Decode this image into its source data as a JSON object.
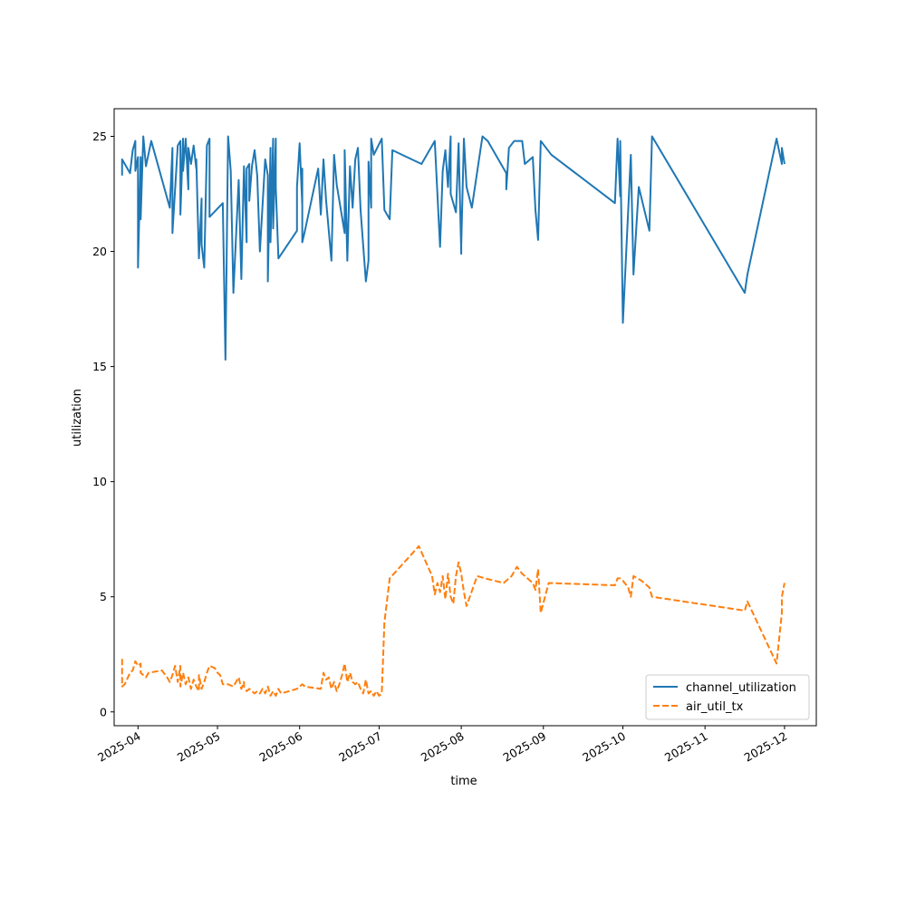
{
  "chart_data": {
    "type": "line",
    "title": "",
    "xlabel": "time",
    "ylabel": "utilization",
    "ylim": [
      -0.6,
      26.2
    ],
    "xlim": [
      "2025-03-23",
      "2025-12-13"
    ],
    "grid": false,
    "legend_position": "lower-right",
    "x_ticks": [
      "2025-04",
      "2025-05",
      "2025-06",
      "2025-07",
      "2025-08",
      "2025-09",
      "2025-10",
      "2025-11",
      "2025-12"
    ],
    "x_tick_dates": [
      "2025-04-01",
      "2025-05-01",
      "2025-06-01",
      "2025-07-01",
      "2025-08-01",
      "2025-09-01",
      "2025-10-01",
      "2025-11-01",
      "2025-12-01"
    ],
    "y_ticks": [
      0,
      5,
      10,
      15,
      20,
      25
    ],
    "series": [
      {
        "name": "channel_utilization",
        "color": "#1f77b4",
        "dash": "solid",
        "points": [
          [
            "2025-03-26",
            23.3
          ],
          [
            "2025-03-26",
            24.0
          ],
          [
            "2025-03-29",
            23.4
          ],
          [
            "2025-03-30",
            24.4
          ],
          [
            "2025-03-31",
            24.8
          ],
          [
            "2025-03-31",
            23.5
          ],
          [
            "2025-04-01",
            24.1
          ],
          [
            "2025-04-01",
            19.3
          ],
          [
            "2025-04-02",
            24.1
          ],
          [
            "2025-04-02",
            21.4
          ],
          [
            "2025-04-03",
            25.0
          ],
          [
            "2025-04-04",
            23.7
          ],
          [
            "2025-04-06",
            24.8
          ],
          [
            "2025-04-13",
            21.9
          ],
          [
            "2025-04-14",
            24.5
          ],
          [
            "2025-04-14",
            20.8
          ],
          [
            "2025-04-16",
            24.6
          ],
          [
            "2025-04-17",
            24.8
          ],
          [
            "2025-04-17",
            21.6
          ],
          [
            "2025-04-18",
            24.9
          ],
          [
            "2025-04-18",
            23.5
          ],
          [
            "2025-04-19",
            24.9
          ],
          [
            "2025-04-20",
            22.7
          ],
          [
            "2025-04-20",
            24.5
          ],
          [
            "2025-04-21",
            23.8
          ],
          [
            "2025-04-22",
            24.6
          ],
          [
            "2025-04-23",
            23.6
          ],
          [
            "2025-04-23",
            24.0
          ],
          [
            "2025-04-24",
            19.7
          ],
          [
            "2025-04-25",
            22.3
          ],
          [
            "2025-04-25",
            20.3
          ],
          [
            "2025-04-26",
            19.3
          ],
          [
            "2025-04-27",
            24.6
          ],
          [
            "2025-04-28",
            24.9
          ],
          [
            "2025-04-28",
            21.5
          ],
          [
            "2025-05-03",
            22.1
          ],
          [
            "2025-05-04",
            15.3
          ],
          [
            "2025-05-05",
            25.0
          ],
          [
            "2025-05-06",
            23.5
          ],
          [
            "2025-05-07",
            18.2
          ],
          [
            "2025-05-09",
            23.1
          ],
          [
            "2025-05-10",
            18.8
          ],
          [
            "2025-05-11",
            23.7
          ],
          [
            "2025-05-12",
            20.4
          ],
          [
            "2025-05-12",
            23.6
          ],
          [
            "2025-05-13",
            23.8
          ],
          [
            "2025-05-13",
            22.2
          ],
          [
            "2025-05-14",
            23.7
          ],
          [
            "2025-05-15",
            24.4
          ],
          [
            "2025-05-16",
            23.3
          ],
          [
            "2025-05-17",
            20.0
          ],
          [
            "2025-05-19",
            24.0
          ],
          [
            "2025-05-20",
            23.3
          ],
          [
            "2025-05-20",
            18.7
          ],
          [
            "2025-05-21",
            24.5
          ],
          [
            "2025-05-21",
            20.4
          ],
          [
            "2025-05-22",
            24.9
          ],
          [
            "2025-05-22",
            21.0
          ],
          [
            "2025-05-23",
            24.9
          ],
          [
            "2025-05-23",
            22.8
          ],
          [
            "2025-05-24",
            19.7
          ],
          [
            "2025-05-31",
            20.9
          ],
          [
            "2025-05-31",
            22.8
          ],
          [
            "2025-06-01",
            24.7
          ],
          [
            "2025-06-02",
            22.0
          ],
          [
            "2025-06-02",
            23.6
          ],
          [
            "2025-06-02",
            20.4
          ],
          [
            "2025-06-03",
            20.9
          ],
          [
            "2025-06-08",
            23.6
          ],
          [
            "2025-06-09",
            21.6
          ],
          [
            "2025-06-10",
            24.0
          ],
          [
            "2025-06-11",
            22.2
          ],
          [
            "2025-06-13",
            19.6
          ],
          [
            "2025-06-14",
            24.2
          ],
          [
            "2025-06-15",
            22.9
          ],
          [
            "2025-06-18",
            20.8
          ],
          [
            "2025-06-18",
            24.4
          ],
          [
            "2025-06-19",
            19.6
          ],
          [
            "2025-06-20",
            23.7
          ],
          [
            "2025-06-21",
            21.9
          ],
          [
            "2025-06-22",
            24.0
          ],
          [
            "2025-06-23",
            24.5
          ],
          [
            "2025-06-24",
            21.8
          ],
          [
            "2025-06-26",
            18.7
          ],
          [
            "2025-06-27",
            19.6
          ],
          [
            "2025-06-27",
            23.9
          ],
          [
            "2025-06-28",
            21.9
          ],
          [
            "2025-06-28",
            24.9
          ],
          [
            "2025-06-29",
            24.2
          ],
          [
            "2025-07-02",
            24.9
          ],
          [
            "2025-07-03",
            21.8
          ],
          [
            "2025-07-05",
            21.4
          ],
          [
            "2025-07-06",
            24.4
          ],
          [
            "2025-07-17",
            23.8
          ],
          [
            "2025-07-22",
            24.8
          ],
          [
            "2025-07-24",
            20.2
          ],
          [
            "2025-07-25",
            23.5
          ],
          [
            "2025-07-26",
            24.4
          ],
          [
            "2025-07-27",
            22.8
          ],
          [
            "2025-07-28",
            25.0
          ],
          [
            "2025-07-28",
            22.5
          ],
          [
            "2025-07-30",
            21.7
          ],
          [
            "2025-07-31",
            24.7
          ],
          [
            "2025-08-01",
            19.9
          ],
          [
            "2025-08-01",
            20.3
          ],
          [
            "2025-08-02",
            24.9
          ],
          [
            "2025-08-03",
            22.8
          ],
          [
            "2025-08-05",
            21.9
          ],
          [
            "2025-08-09",
            25.0
          ],
          [
            "2025-08-11",
            24.8
          ],
          [
            "2025-08-18",
            23.4
          ],
          [
            "2025-08-18",
            22.7
          ],
          [
            "2025-08-19",
            24.5
          ],
          [
            "2025-08-21",
            24.8
          ],
          [
            "2025-08-24",
            24.8
          ],
          [
            "2025-08-25",
            23.8
          ],
          [
            "2025-08-28",
            24.1
          ],
          [
            "2025-08-29",
            21.8
          ],
          [
            "2025-08-30",
            20.5
          ],
          [
            "2025-08-31",
            24.8
          ],
          [
            "2025-09-04",
            24.2
          ],
          [
            "2025-09-28",
            22.1
          ],
          [
            "2025-09-29",
            24.9
          ],
          [
            "2025-09-30",
            22.4
          ],
          [
            "2025-09-30",
            24.8
          ],
          [
            "2025-10-01",
            16.9
          ],
          [
            "2025-10-04",
            24.2
          ],
          [
            "2025-10-05",
            19.0
          ],
          [
            "2025-10-07",
            22.8
          ],
          [
            "2025-10-11",
            20.9
          ],
          [
            "2025-10-12",
            25.0
          ],
          [
            "2025-11-16",
            18.2
          ],
          [
            "2025-11-17",
            19.0
          ],
          [
            "2025-11-28",
            24.9
          ],
          [
            "2025-11-30",
            23.8
          ],
          [
            "2025-11-30",
            24.5
          ],
          [
            "2025-12-01",
            23.8
          ]
        ]
      },
      {
        "name": "air_util_tx",
        "color": "#ff7f0e",
        "dash": "dashed",
        "points": [
          [
            "2025-03-26",
            2.3
          ],
          [
            "2025-03-26",
            1.1
          ],
          [
            "2025-03-27",
            1.2
          ],
          [
            "2025-03-29",
            1.7
          ],
          [
            "2025-03-30",
            1.8
          ],
          [
            "2025-03-31",
            2.2
          ],
          [
            "2025-04-01",
            2.0
          ],
          [
            "2025-04-02",
            2.1
          ],
          [
            "2025-04-02",
            1.7
          ],
          [
            "2025-04-03",
            1.6
          ],
          [
            "2025-04-04",
            1.5
          ],
          [
            "2025-04-05",
            1.7
          ],
          [
            "2025-04-10",
            1.8
          ],
          [
            "2025-04-12",
            1.5
          ],
          [
            "2025-04-13",
            1.3
          ],
          [
            "2025-04-14",
            1.6
          ],
          [
            "2025-04-15",
            2.0
          ],
          [
            "2025-04-16",
            1.3
          ],
          [
            "2025-04-17",
            2.0
          ],
          [
            "2025-04-17",
            1.1
          ],
          [
            "2025-04-18",
            1.7
          ],
          [
            "2025-04-19",
            1.2
          ],
          [
            "2025-04-20",
            1.5
          ],
          [
            "2025-04-21",
            1.0
          ],
          [
            "2025-04-22",
            1.4
          ],
          [
            "2025-04-23",
            1.1
          ],
          [
            "2025-04-24",
            0.9
          ],
          [
            "2025-04-24",
            1.6
          ],
          [
            "2025-04-25",
            1.0
          ],
          [
            "2025-04-26",
            1.3
          ],
          [
            "2025-04-27",
            1.7
          ],
          [
            "2025-04-28",
            2.0
          ],
          [
            "2025-04-30",
            1.9
          ],
          [
            "2025-05-01",
            1.7
          ],
          [
            "2025-05-02",
            1.6
          ],
          [
            "2025-05-03",
            1.2
          ],
          [
            "2025-05-05",
            1.2
          ],
          [
            "2025-05-07",
            1.1
          ],
          [
            "2025-05-09",
            1.5
          ],
          [
            "2025-05-10",
            1.0
          ],
          [
            "2025-05-11",
            1.3
          ],
          [
            "2025-05-11",
            1.1
          ],
          [
            "2025-05-12",
            0.9
          ],
          [
            "2025-05-13",
            1.0
          ],
          [
            "2025-05-14",
            0.9
          ],
          [
            "2025-05-15",
            0.8
          ],
          [
            "2025-05-16",
            0.9
          ],
          [
            "2025-05-17",
            0.8
          ],
          [
            "2025-05-18",
            1.0
          ],
          [
            "2025-05-19",
            0.8
          ],
          [
            "2025-05-20",
            1.1
          ],
          [
            "2025-05-21",
            0.7
          ],
          [
            "2025-05-22",
            0.9
          ],
          [
            "2025-05-23",
            0.7
          ],
          [
            "2025-05-24",
            1.0
          ],
          [
            "2025-05-25",
            0.8
          ],
          [
            "2025-05-31",
            1.0
          ],
          [
            "2025-06-01",
            1.1
          ],
          [
            "2025-06-02",
            1.2
          ],
          [
            "2025-06-03",
            1.1
          ],
          [
            "2025-06-09",
            1.0
          ],
          [
            "2025-06-10",
            1.7
          ],
          [
            "2025-06-11",
            1.4
          ],
          [
            "2025-06-12",
            1.5
          ],
          [
            "2025-06-13",
            1.0
          ],
          [
            "2025-06-14",
            1.3
          ],
          [
            "2025-06-15",
            0.9
          ],
          [
            "2025-06-16",
            1.2
          ],
          [
            "2025-06-17",
            1.6
          ],
          [
            "2025-06-18",
            2.1
          ],
          [
            "2025-06-19",
            1.3
          ],
          [
            "2025-06-20",
            1.7
          ],
          [
            "2025-06-21",
            1.3
          ],
          [
            "2025-06-22",
            1.2
          ],
          [
            "2025-06-23",
            1.3
          ],
          [
            "2025-06-24",
            1.0
          ],
          [
            "2025-06-25",
            0.8
          ],
          [
            "2025-06-26",
            1.4
          ],
          [
            "2025-06-27",
            0.8
          ],
          [
            "2025-06-28",
            0.9
          ],
          [
            "2025-06-29",
            0.7
          ],
          [
            "2025-06-30",
            0.9
          ],
          [
            "2025-07-01",
            0.7
          ],
          [
            "2025-07-02",
            0.8
          ],
          [
            "2025-07-03",
            3.9
          ],
          [
            "2025-07-05",
            5.8
          ],
          [
            "2025-07-16",
            7.2
          ],
          [
            "2025-07-21",
            5.9
          ],
          [
            "2025-07-22",
            5.1
          ],
          [
            "2025-07-23",
            5.6
          ],
          [
            "2025-07-24",
            5.2
          ],
          [
            "2025-07-25",
            5.9
          ],
          [
            "2025-07-26",
            4.9
          ],
          [
            "2025-07-27",
            6.0
          ],
          [
            "2025-07-28",
            5.0
          ],
          [
            "2025-07-29",
            4.7
          ],
          [
            "2025-07-30",
            5.9
          ],
          [
            "2025-07-31",
            6.5
          ],
          [
            "2025-08-01",
            6.0
          ],
          [
            "2025-08-02",
            5.2
          ],
          [
            "2025-08-03",
            4.6
          ],
          [
            "2025-08-07",
            5.9
          ],
          [
            "2025-08-10",
            5.8
          ],
          [
            "2025-08-17",
            5.6
          ],
          [
            "2025-08-20",
            5.9
          ],
          [
            "2025-08-22",
            6.3
          ],
          [
            "2025-08-24",
            6.0
          ],
          [
            "2025-08-26",
            5.8
          ],
          [
            "2025-08-28",
            5.6
          ],
          [
            "2025-08-29",
            5.3
          ],
          [
            "2025-08-30",
            6.2
          ],
          [
            "2025-08-31",
            4.3
          ],
          [
            "2025-09-03",
            5.6
          ],
          [
            "2025-09-28",
            5.5
          ],
          [
            "2025-09-29",
            5.8
          ],
          [
            "2025-09-30",
            5.8
          ],
          [
            "2025-10-01",
            5.7
          ],
          [
            "2025-10-03",
            5.4
          ],
          [
            "2025-10-04",
            5.0
          ],
          [
            "2025-10-05",
            5.9
          ],
          [
            "2025-10-08",
            5.7
          ],
          [
            "2025-10-11",
            5.4
          ],
          [
            "2025-10-12",
            5.0
          ],
          [
            "2025-11-16",
            4.4
          ],
          [
            "2025-11-17",
            4.8
          ],
          [
            "2025-11-28",
            2.1
          ],
          [
            "2025-11-30",
            4.3
          ],
          [
            "2025-11-30",
            5.0
          ],
          [
            "2025-12-01",
            5.6
          ]
        ]
      }
    ]
  }
}
